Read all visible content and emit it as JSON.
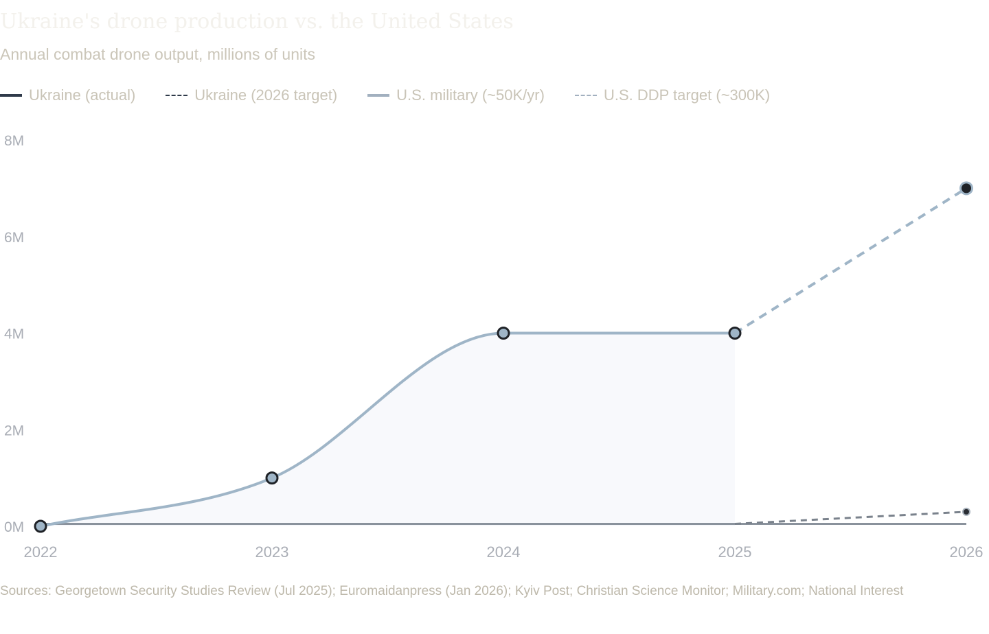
{
  "header": {
    "title": "Ukraine's drone production vs. the United States",
    "subtitle": "Annual combat drone output, millions of units"
  },
  "legend": [
    {
      "label": "Ukraine (actual)"
    },
    {
      "label": "Ukraine (2026 target)"
    },
    {
      "label": "U.S. military (~50K/yr)"
    },
    {
      "label": "U.S. DDP target (~300K)"
    }
  ],
  "colors": {
    "ukraine_line": "#9fb5c7",
    "ukraine_fill": "#f8f9fc",
    "ukraine_target": "#9fb5c7",
    "us_line": "#8a929c",
    "us_target": "#7a828c",
    "marker_stroke": "#1f2227",
    "axis_text": "#a9adb5"
  },
  "chart_data": {
    "type": "line",
    "x": [
      "2022",
      "2023",
      "2024",
      "2025",
      "2026"
    ],
    "ylim": [
      0,
      8
    ],
    "y_ticks": [
      "0M",
      "2M",
      "4M",
      "6M",
      "8M"
    ],
    "series": [
      {
        "name": "Ukraine (actual)",
        "x": [
          "2022",
          "2023",
          "2024",
          "2025"
        ],
        "values": [
          0,
          1,
          4,
          4
        ]
      },
      {
        "name": "Ukraine (2026 target)",
        "x": [
          "2025",
          "2026"
        ],
        "values": [
          4,
          7
        ]
      },
      {
        "name": "U.S. military (~50K/yr)",
        "x": [
          "2022",
          "2023",
          "2024",
          "2025",
          "2026"
        ],
        "values": [
          0.05,
          0.05,
          0.05,
          0.05,
          0.05
        ]
      },
      {
        "name": "U.S. DDP target (~300K)",
        "x": [
          "2025",
          "2026"
        ],
        "values": [
          0.05,
          0.3
        ]
      }
    ]
  },
  "footer": {
    "sources": "Sources: Georgetown Security Studies Review (Jul 2025); Euromaidanpress (Jan 2026); Kyiv Post; Christian Science Monitor; Military.com; National Interest"
  }
}
